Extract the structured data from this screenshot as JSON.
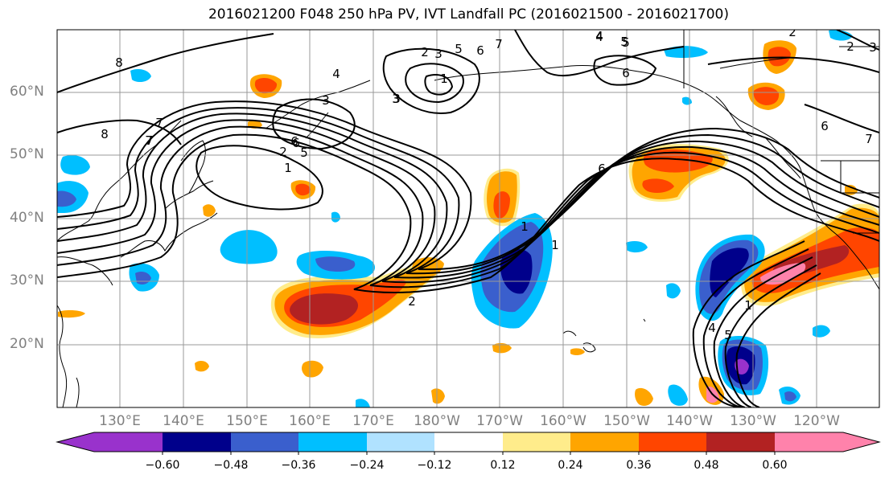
{
  "title": "2016021200 F048 250 hPa PV, IVT Landfall PC (2016021500 - 2016021700)",
  "lat_labels": [
    "60°N",
    "50°N",
    "40°N",
    "30°N",
    "20°N"
  ],
  "lon_labels": [
    "130°E",
    "140°E",
    "150°E",
    "160°E",
    "170°E",
    "180°W",
    "170°W",
    "160°W",
    "150°W",
    "140°W",
    "130°W",
    "120°W"
  ],
  "colorbar": {
    "tick_labels": [
      "−0.60",
      "−0.48",
      "−0.36",
      "−0.24",
      "−0.12",
      "0.12",
      "0.24",
      "0.36",
      "0.48",
      "0.60"
    ],
    "colors": [
      "#9932cc",
      "#00008b",
      "#3a5fcd",
      "#00bfff",
      "#b0e2ff",
      "#ffffff",
      "#ffec8b",
      "#ffa500",
      "#ff4500",
      "#b22222",
      "#ff82ab"
    ]
  },
  "contour_labels": [
    "8",
    "7",
    "6",
    "5",
    "4",
    "3",
    "2",
    "1",
    "5",
    "6",
    "7",
    "4",
    "3",
    "2",
    "1",
    "1",
    "2",
    "6",
    "5",
    "4",
    "7",
    "3",
    "2",
    "1",
    "6",
    "7",
    "8",
    "6",
    "4",
    "5",
    "1",
    "2",
    "3",
    "3",
    "6",
    "7",
    "4",
    "5"
  ]
}
